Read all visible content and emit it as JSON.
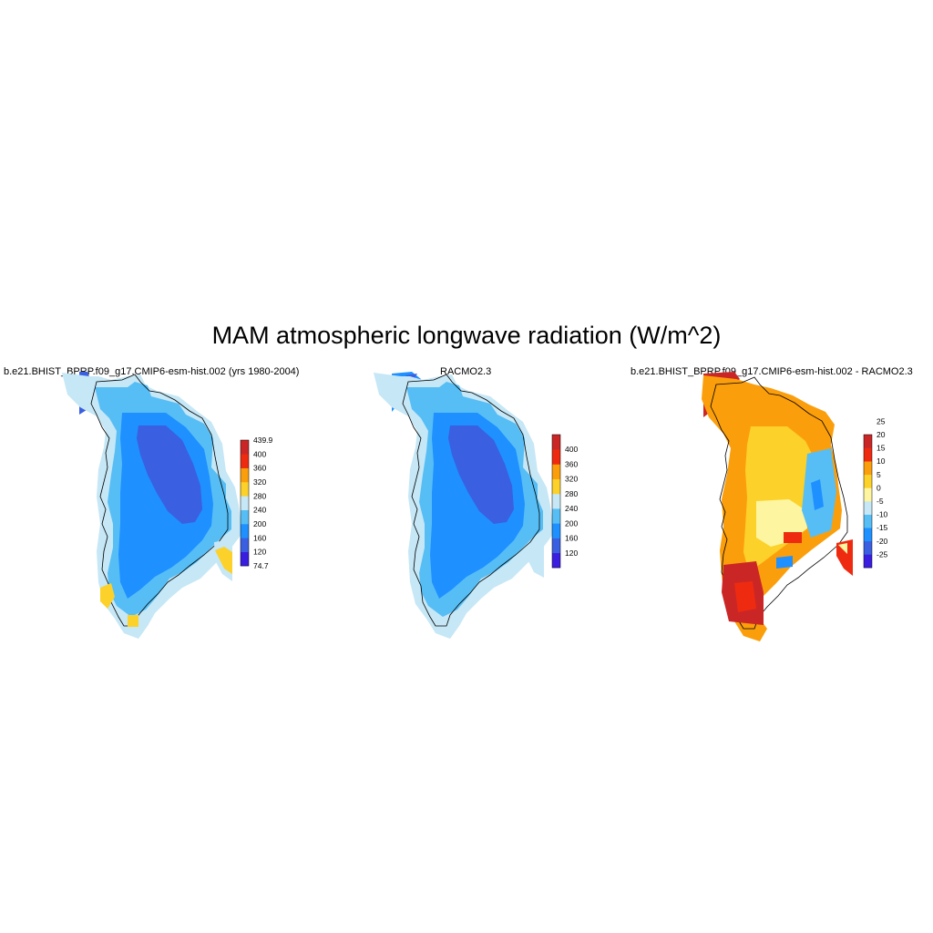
{
  "title": "MAM atmospheric longwave radiation (W/m^2)",
  "panels": [
    {
      "id": "model",
      "title": "b.e21.BHIST_BPRP.f09_g17.CMIP6-esm-hist.002 (yrs 1980-2004)",
      "colorbar": {
        "colors": [
          "#3a1ee0",
          "#3a5fe0",
          "#1e90ff",
          "#56bef5",
          "#c6e7f6",
          "#fcd12a",
          "#fb9e0b",
          "#ee2b10",
          "#cb2626"
        ],
        "labels": [
          "74.7",
          "120",
          "160",
          "200",
          "240",
          "280",
          "320",
          "360",
          "400",
          "439.9"
        ]
      }
    },
    {
      "id": "obs",
      "title": "RACMO2.3",
      "colorbar": {
        "colors": [
          "#3a1ee0",
          "#3a5fe0",
          "#1e90ff",
          "#56bef5",
          "#c6e7f6",
          "#fcd12a",
          "#fb9e0b",
          "#ee2b10",
          "#cb2626"
        ],
        "labels": [
          "120",
          "160",
          "200",
          "240",
          "280",
          "320",
          "360",
          "400"
        ]
      }
    },
    {
      "id": "diff",
      "title": "b.e21.BHIST_BPRP.f09_g17.CMIP6-esm-hist.002 - RACMO2.3",
      "colorbar": {
        "colors": [
          "#3a1ee0",
          "#3a5fe0",
          "#1e90ff",
          "#56bef5",
          "#c6e7f6",
          "#fdf5a0",
          "#fcd12a",
          "#fb9e0b",
          "#ee2b10",
          "#cb2626"
        ],
        "labels": [
          "-25",
          "-20",
          "-15",
          "-10",
          "-5",
          "0",
          "5",
          "10",
          "15",
          "20",
          "25"
        ]
      }
    }
  ]
}
